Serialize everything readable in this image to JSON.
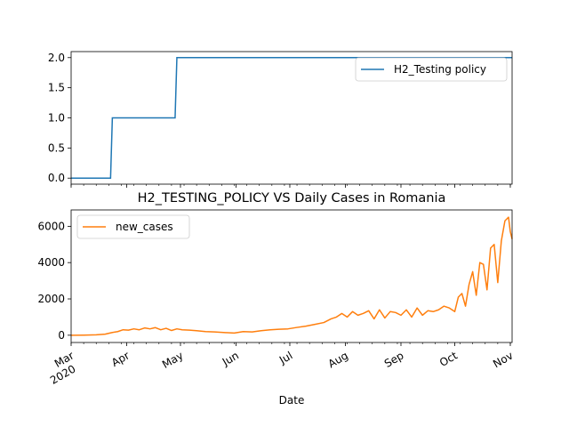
{
  "chart_data": [
    {
      "type": "line",
      "title": "",
      "xlabel": "",
      "ylabel": "",
      "ylim": [
        -0.1,
        2.1
      ],
      "y_ticks": [
        "0.0",
        "0.5",
        "1.0",
        "1.5",
        "2.0"
      ],
      "y_tick_values": [
        0,
        0.5,
        1.0,
        1.5,
        2.0
      ],
      "legend": "top-right",
      "grid": false,
      "color": "#1f77b4",
      "series": [
        {
          "name": "H2_Testing policy",
          "x": [
            "2020-03-01",
            "2020-03-23",
            "2020-03-24",
            "2020-04-28",
            "2020-04-29",
            "2020-11-02"
          ],
          "values": [
            0,
            0,
            1,
            1,
            2,
            2
          ]
        }
      ]
    },
    {
      "type": "line",
      "title": "H2_TESTING_POLICY VS Daily Cases in Romania",
      "xlabel": "Date",
      "ylabel": "",
      "ylim": [
        -400,
        6900
      ],
      "y_ticks": [
        "0",
        "2000",
        "4000",
        "6000"
      ],
      "y_tick_values": [
        0,
        2000,
        4000,
        6000
      ],
      "x_ticks": [
        {
          "date": "2020-03-01",
          "label": "Mar",
          "sub": "2020"
        },
        {
          "date": "2020-04-01",
          "label": "Apr",
          "sub": ""
        },
        {
          "date": "2020-05-01",
          "label": "May",
          "sub": ""
        },
        {
          "date": "2020-06-01",
          "label": "Jun",
          "sub": ""
        },
        {
          "date": "2020-07-01",
          "label": "Jul",
          "sub": ""
        },
        {
          "date": "2020-08-01",
          "label": "Aug",
          "sub": ""
        },
        {
          "date": "2020-09-01",
          "label": "Sep",
          "sub": ""
        },
        {
          "date": "2020-10-01",
          "label": "Oct",
          "sub": ""
        },
        {
          "date": "2020-11-01",
          "label": "Nov",
          "sub": ""
        }
      ],
      "xlim": [
        "2020-03-01",
        "2020-11-02"
      ],
      "legend": "top-left",
      "grid": false,
      "color": "#ff7f0e",
      "series": [
        {
          "name": "new_cases",
          "x": [
            "2020-03-01",
            "2020-03-08",
            "2020-03-15",
            "2020-03-20",
            "2020-03-24",
            "2020-03-27",
            "2020-03-30",
            "2020-04-02",
            "2020-04-05",
            "2020-04-08",
            "2020-04-11",
            "2020-04-14",
            "2020-04-17",
            "2020-04-20",
            "2020-04-23",
            "2020-04-26",
            "2020-04-29",
            "2020-05-02",
            "2020-05-06",
            "2020-05-10",
            "2020-05-15",
            "2020-05-20",
            "2020-05-25",
            "2020-05-31",
            "2020-06-05",
            "2020-06-10",
            "2020-06-15",
            "2020-06-20",
            "2020-06-25",
            "2020-06-30",
            "2020-07-05",
            "2020-07-10",
            "2020-07-15",
            "2020-07-20",
            "2020-07-24",
            "2020-07-27",
            "2020-07-30",
            "2020-08-02",
            "2020-08-05",
            "2020-08-08",
            "2020-08-11",
            "2020-08-14",
            "2020-08-17",
            "2020-08-20",
            "2020-08-23",
            "2020-08-26",
            "2020-08-29",
            "2020-09-01",
            "2020-09-04",
            "2020-09-07",
            "2020-09-10",
            "2020-09-13",
            "2020-09-16",
            "2020-09-19",
            "2020-09-22",
            "2020-09-25",
            "2020-09-28",
            "2020-10-01",
            "2020-10-03",
            "2020-10-05",
            "2020-10-07",
            "2020-10-09",
            "2020-10-11",
            "2020-10-13",
            "2020-10-15",
            "2020-10-17",
            "2020-10-19",
            "2020-10-21",
            "2020-10-23",
            "2020-10-25",
            "2020-10-27",
            "2020-10-29",
            "2020-10-31",
            "2020-11-01",
            "2020-11-02"
          ],
          "values": [
            0,
            5,
            20,
            60,
            150,
            200,
            300,
            280,
            350,
            300,
            400,
            350,
            420,
            300,
            380,
            260,
            350,
            300,
            280,
            250,
            200,
            180,
            150,
            120,
            200,
            180,
            250,
            300,
            330,
            350,
            430,
            500,
            600,
            700,
            900,
            1000,
            1200,
            1000,
            1300,
            1100,
            1200,
            1350,
            900,
            1400,
            950,
            1300,
            1250,
            1100,
            1400,
            1000,
            1500,
            1100,
            1350,
            1300,
            1400,
            1600,
            1500,
            1300,
            2100,
            2300,
            1600,
            2800,
            3500,
            2200,
            4000,
            3900,
            2500,
            4800,
            5000,
            2900,
            5200,
            6300,
            6500,
            5700,
            5300
          ]
        }
      ]
    }
  ]
}
